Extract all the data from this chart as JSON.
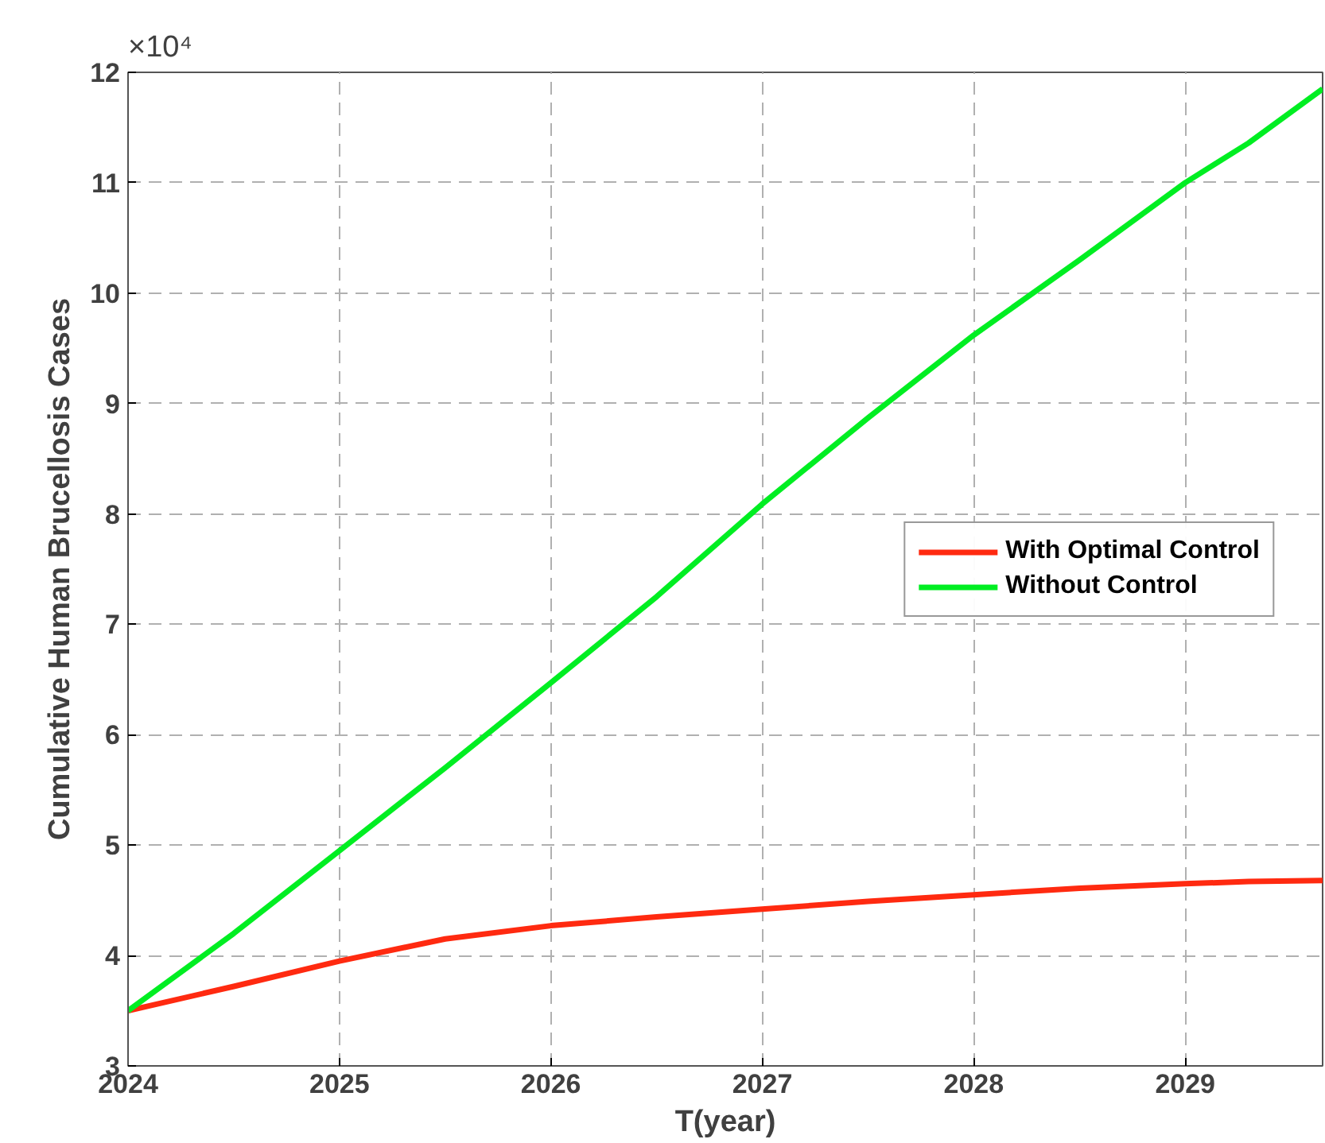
{
  "chart_data": {
    "type": "line",
    "xlabel": "T(year)",
    "ylabel": "Cumulative Human Brucellosis Cases",
    "annotations": [
      "×10⁴"
    ],
    "x": [
      2024,
      2024.5,
      2025,
      2025.5,
      2026,
      2026.5,
      2027,
      2027.5,
      2028,
      2028.5,
      2029,
      2029.3,
      2029.65
    ],
    "series": [
      {
        "name": "With Optimal Control",
        "color": "#ff2a10",
        "values": [
          3.5,
          3.72,
          3.95,
          4.15,
          4.27,
          4.35,
          4.42,
          4.49,
          4.55,
          4.61,
          4.65,
          4.67,
          4.68
        ]
      },
      {
        "name": "Without Control",
        "color": "#00ee22",
        "values": [
          3.5,
          4.2,
          4.95,
          5.7,
          6.47,
          7.25,
          8.09,
          8.87,
          9.62,
          10.3,
          11.0,
          11.36,
          11.85
        ]
      }
    ],
    "xlim": [
      2024,
      2029.65
    ],
    "xticks": [
      2024,
      2025,
      2026,
      2027,
      2028,
      2029
    ],
    "ylim": [
      3,
      12
    ],
    "yticks": [
      3,
      4,
      5,
      6,
      7,
      8,
      9,
      10,
      11,
      12
    ],
    "grid": true,
    "legend": "right",
    "line_style": "solid"
  }
}
